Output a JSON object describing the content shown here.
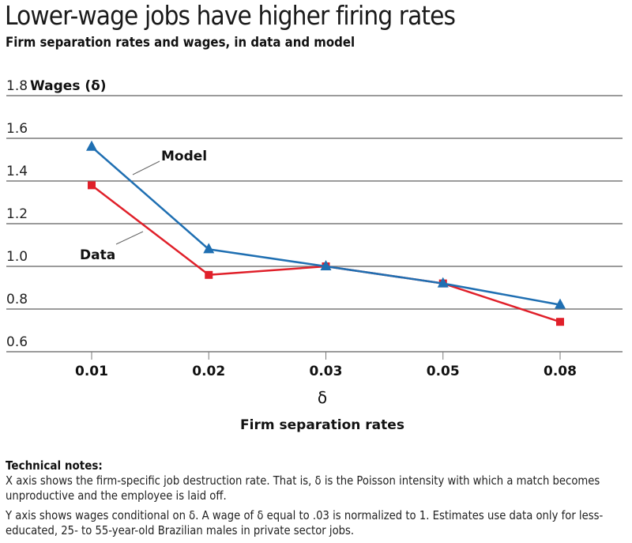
{
  "header": {
    "title": "Lower-wage jobs have higher firing rates",
    "subtitle": "Firm separation rates and wages, in data and model"
  },
  "chart_data": {
    "type": "line",
    "title": "Lower-wage jobs have higher firing rates",
    "subtitle": "Firm separation rates and wages, in data and model",
    "xlabel_symbol": "δ",
    "xlabel": "Firm separation rates",
    "ylabel": "Wages (δ)",
    "categories": [
      "0.01",
      "0.02",
      "0.03",
      "0.05",
      "0.08"
    ],
    "ylim": [
      0.6,
      1.8
    ],
    "yticks": [
      "0.6",
      "0.8",
      "1.0",
      "1.2",
      "1.4",
      "1.6",
      "1.8"
    ],
    "ytick_values": [
      0.6,
      0.8,
      1.0,
      1.2,
      1.4,
      1.6,
      1.8
    ],
    "grid": true,
    "series": [
      {
        "name": "Model",
        "label": "Model",
        "color": "#1f6fb2",
        "marker": "triangle",
        "values": [
          1.56,
          1.08,
          1.0,
          0.92,
          0.82
        ]
      },
      {
        "name": "Data",
        "label": "Data",
        "color": "#e0202a",
        "marker": "square",
        "values": [
          1.38,
          0.96,
          1.0,
          0.92,
          0.74
        ]
      }
    ]
  },
  "notes": {
    "title": "Technical notes:",
    "paragraphs": [
      "X axis shows the firm-specific job destruction rate. That is, δ is the Poisson intensity with which a match becomes unproductive and the employee is laid off.",
      "Y axis shows wages conditional on δ. A wage of δ equal to .03 is normalized to 1. Estimates use data only for less-educated, 25- to 55-year-old Brazilian males in private sector jobs."
    ]
  }
}
